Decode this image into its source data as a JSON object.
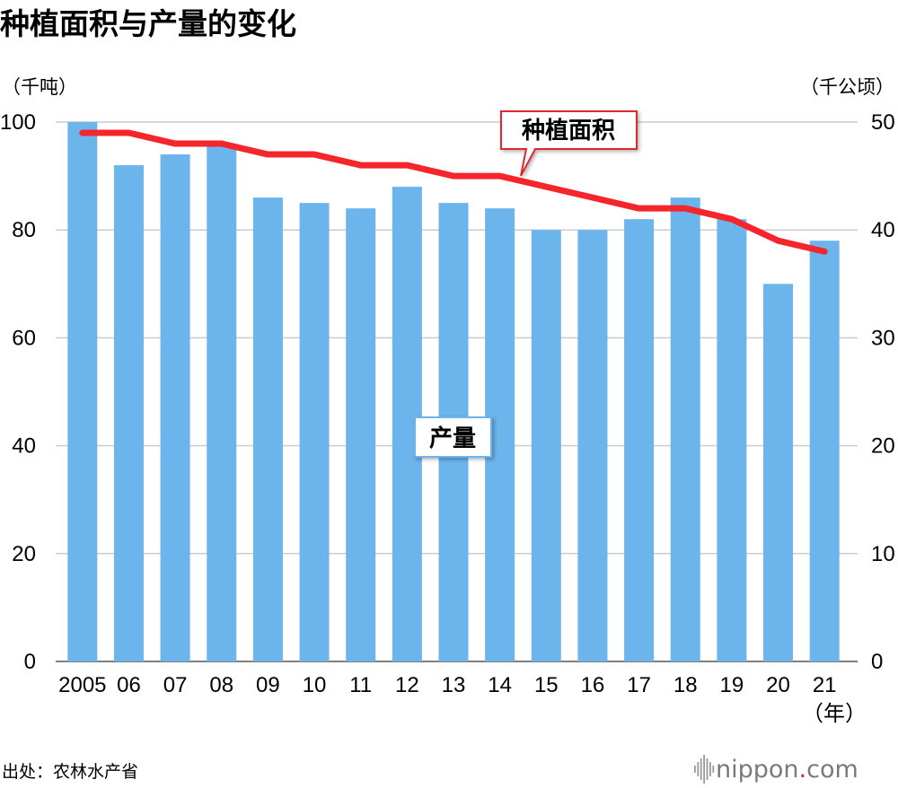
{
  "chart_data": {
    "type": "bar",
    "title": "种植面积与产量的变化",
    "categories": [
      "2005",
      "06",
      "07",
      "08",
      "09",
      "10",
      "11",
      "12",
      "13",
      "14",
      "15",
      "16",
      "17",
      "18",
      "19",
      "20",
      "21"
    ],
    "x_unit": "（年）",
    "y_left": {
      "unit": "（千吨）",
      "ylim": [
        0,
        100
      ],
      "ticks": [
        0,
        20,
        40,
        60,
        80,
        100
      ]
    },
    "y_right": {
      "unit": "（千公顷）",
      "ylim": [
        0,
        50
      ],
      "ticks": [
        0,
        10,
        20,
        30,
        40,
        50
      ]
    },
    "grid": true,
    "series": [
      {
        "name": "产量",
        "type": "bar",
        "axis": "left",
        "color": "#6cb4ec",
        "values": [
          100,
          92,
          94,
          96,
          86,
          85,
          84,
          88,
          85,
          84,
          80,
          80,
          82,
          86,
          82,
          70,
          78
        ]
      },
      {
        "name": "种植面积",
        "type": "line",
        "axis": "right",
        "color": "#f5252c",
        "values": [
          49,
          49,
          48,
          48,
          47,
          47,
          46,
          46,
          45,
          45,
          44,
          43,
          42,
          42,
          41,
          39,
          38
        ]
      }
    ]
  },
  "source": "出处：农林水产省",
  "brand": {
    "name": "nippon",
    "dot": ".",
    "tld": "com"
  }
}
